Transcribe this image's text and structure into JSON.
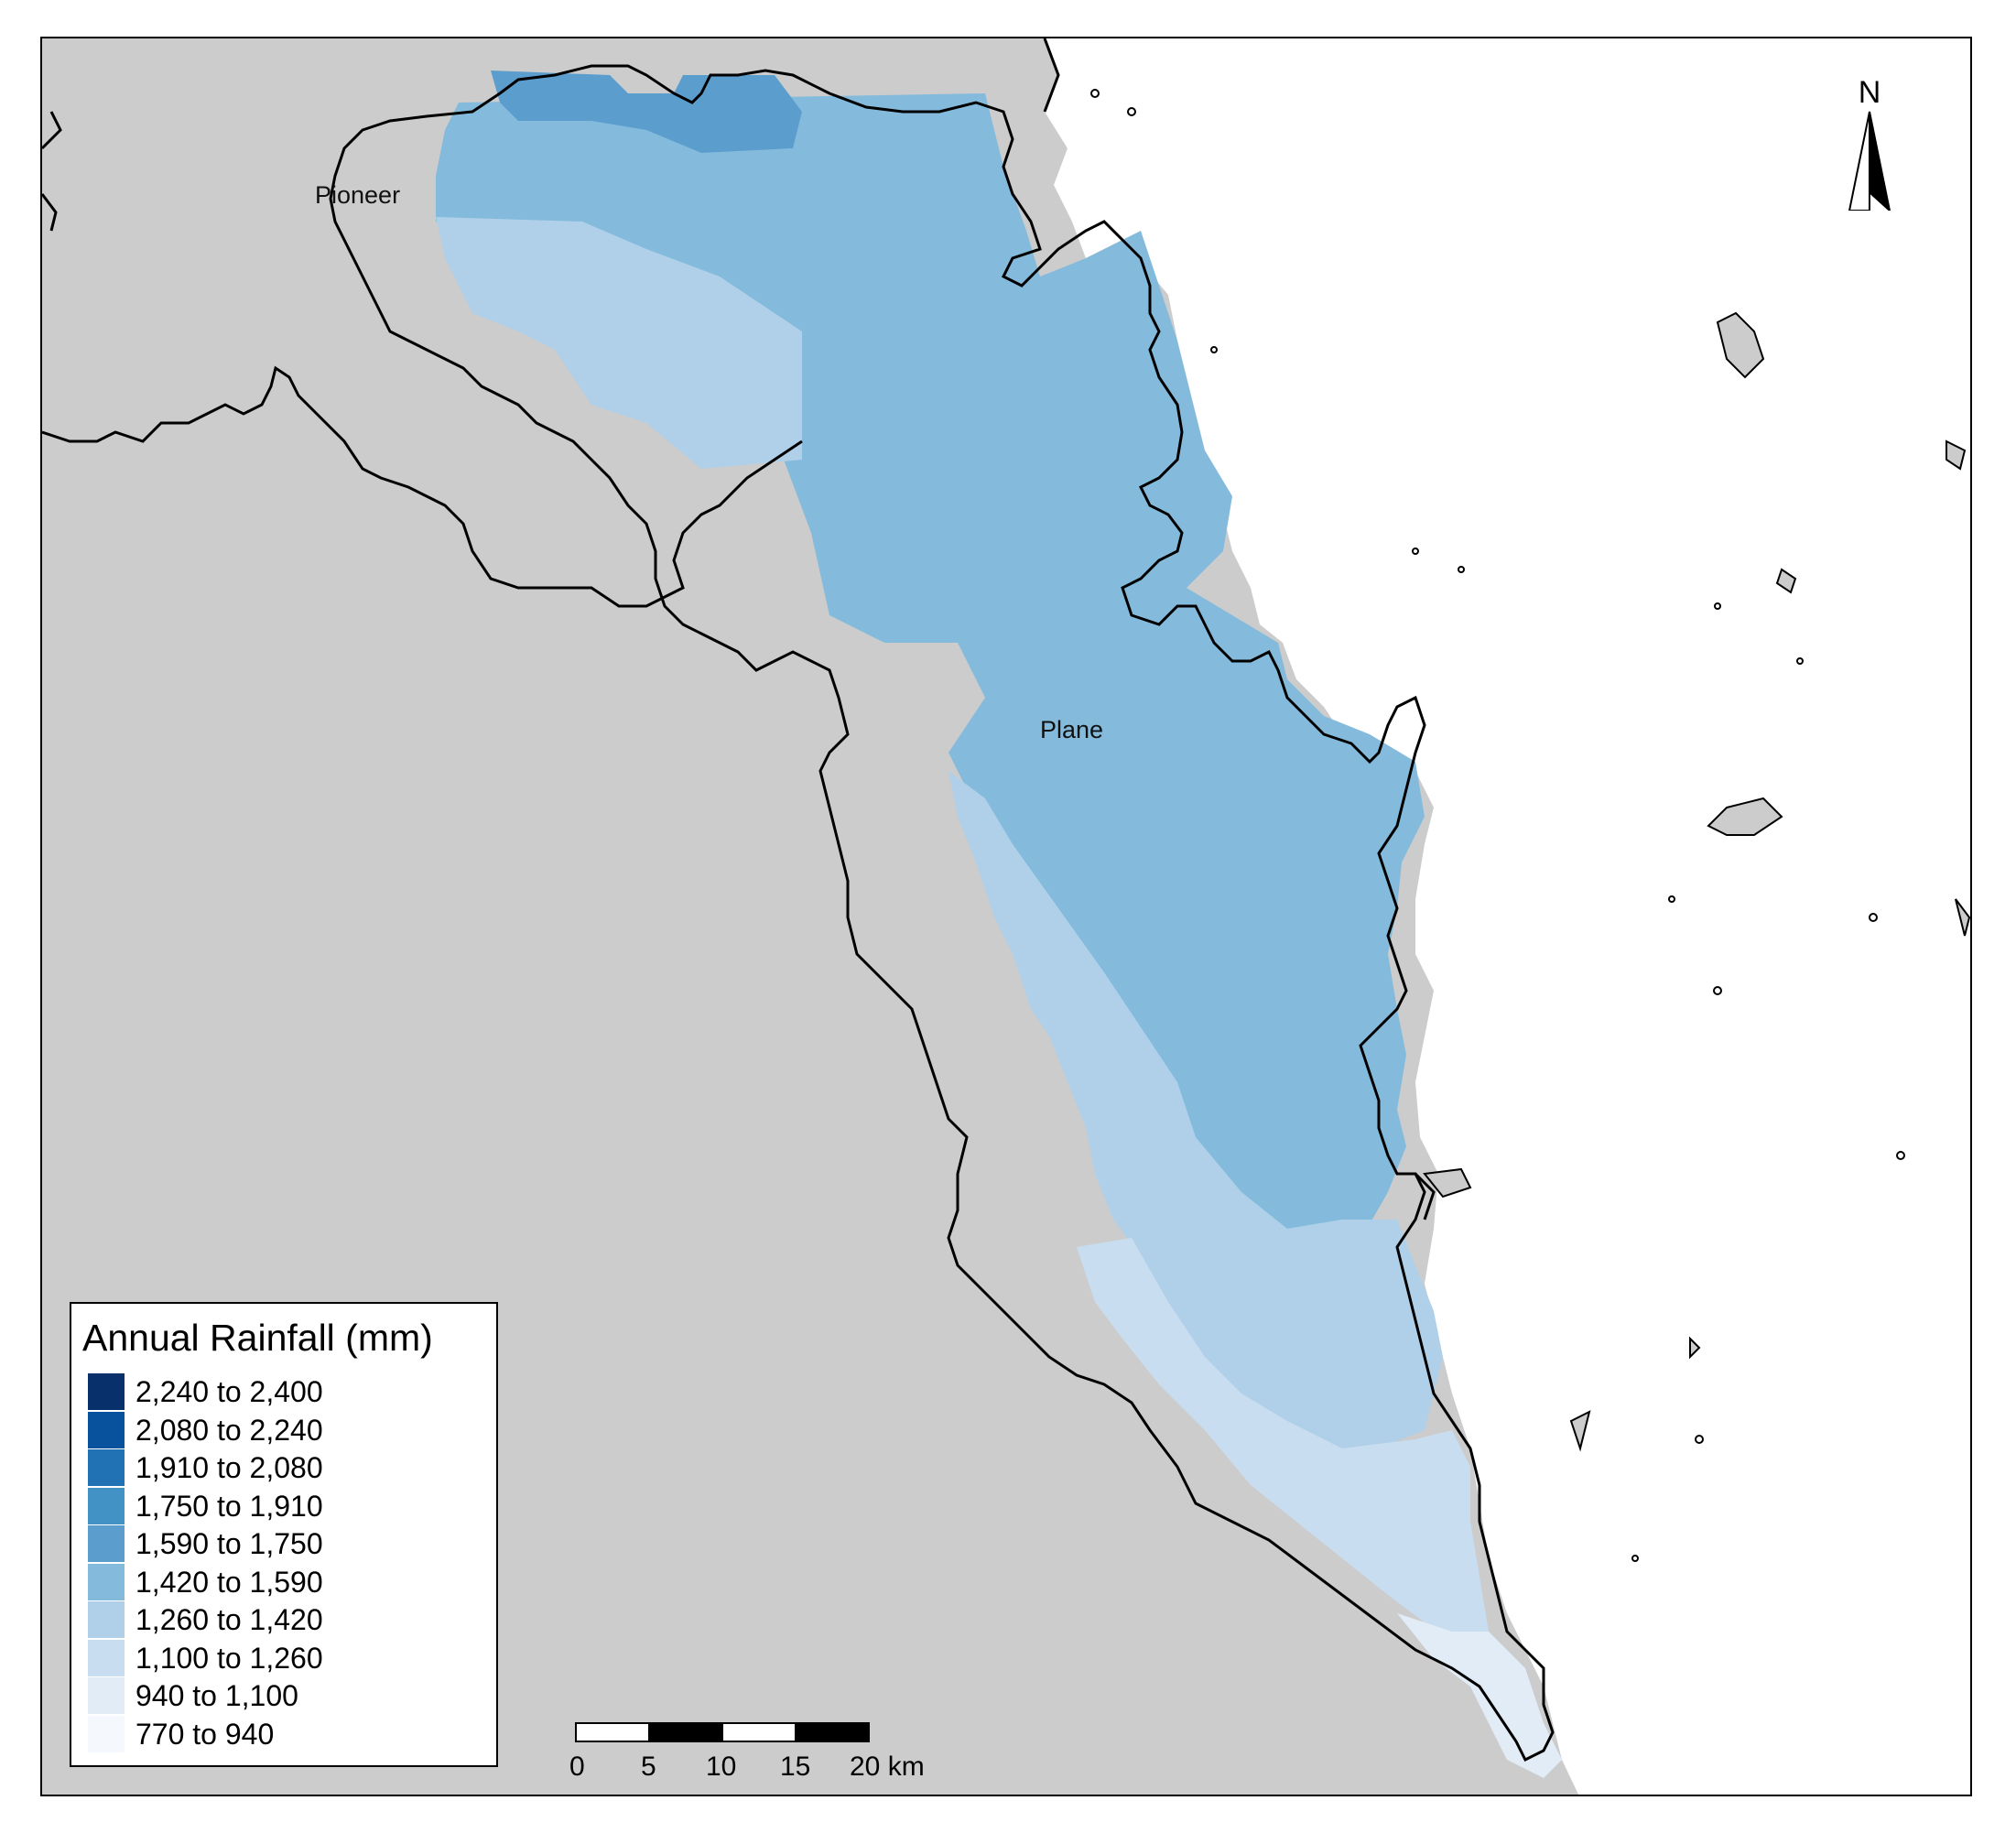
{
  "colors": {
    "land": "#cccccc",
    "sea": "#ffffff",
    "outline": "#000000",
    "rain_1590_1750": "#5b9ece",
    "rain_1420_1590": "#84bbdc",
    "rain_1260_1420": "#afd0e8",
    "rain_1100_1260": "#c9ddf0",
    "rain_940_1100": "#e1ecf7"
  },
  "labels": {
    "pioneer": "Pioneer",
    "plane": "Plane"
  },
  "north_arrow": {
    "letter": "N",
    "icon": "north-arrow-icon"
  },
  "legend": {
    "title": "Annual Rainfall (mm)",
    "items": [
      {
        "label": "2,240 to 2,400",
        "color": "#08306b"
      },
      {
        "label": "2,080 to 2,240",
        "color": "#08519c"
      },
      {
        "label": "1,910 to 2,080",
        "color": "#2171b5"
      },
      {
        "label": "1,750 to 1,910",
        "color": "#4292c6"
      },
      {
        "label": "1,590 to 1,750",
        "color": "#5b9ece"
      },
      {
        "label": "1,420 to 1,590",
        "color": "#84bbdc"
      },
      {
        "label": "1,260 to 1,420",
        "color": "#afd0e8"
      },
      {
        "label": "1,100 to 1,260",
        "color": "#c9ddf0"
      },
      {
        "label": "940 to 1,100",
        "color": "#e1ecf7"
      },
      {
        "label": "770 to 940",
        "color": "#f5f9fe"
      }
    ]
  },
  "scalebar": {
    "ticks": [
      "0",
      "5",
      "10",
      "15",
      "20 km"
    ]
  }
}
